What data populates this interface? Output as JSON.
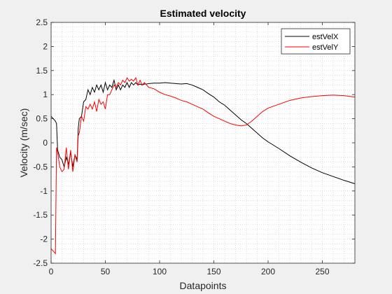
{
  "chart_data": {
    "type": "line",
    "title": "Estimated velocity",
    "xlabel": "Datapoints",
    "ylabel": "Velocity (m/sec)",
    "xlim": [
      0,
      280
    ],
    "ylim": [
      -2.5,
      2.5
    ],
    "xticks": [
      0,
      50,
      100,
      150,
      200,
      250
    ],
    "yticks": [
      -2.5,
      -2,
      -1.5,
      -1,
      -0.5,
      0,
      0.5,
      1,
      1.5,
      2,
      2.5
    ],
    "xtick_labels": [
      "0",
      "50",
      "100",
      "150",
      "200",
      "250"
    ],
    "ytick_labels": [
      "-2.5",
      "-2",
      "-1.5",
      "-1",
      "-0.5",
      "0",
      "0.5",
      "1",
      "1.5",
      "2",
      "2.5"
    ],
    "grid": "minor-dotted",
    "legend_position": "top-right",
    "series": [
      {
        "name": "estVelX",
        "color": "#000000",
        "x": [
          0,
          2,
          4,
          5,
          6,
          8,
          10,
          12,
          14,
          16,
          18,
          20,
          22,
          24,
          25,
          26,
          28,
          30,
          32,
          34,
          36,
          38,
          40,
          42,
          44,
          46,
          48,
          50,
          52,
          54,
          56,
          58,
          60,
          62,
          64,
          66,
          68,
          70,
          72,
          74,
          76,
          78,
          80,
          82,
          84,
          86,
          88,
          90,
          95,
          100,
          105,
          110,
          115,
          120,
          125,
          130,
          135,
          140,
          145,
          150,
          155,
          160,
          165,
          170,
          175,
          180,
          185,
          190,
          195,
          200,
          210,
          220,
          230,
          240,
          250,
          260,
          270,
          280
        ],
        "y": [
          0.55,
          0.5,
          0.45,
          0.4,
          -0.15,
          -0.3,
          -0.35,
          -0.5,
          -0.3,
          -0.45,
          -0.2,
          -0.5,
          -0.25,
          -0.35,
          0.3,
          0.5,
          0.55,
          0.85,
          0.9,
          1.1,
          1.0,
          1.15,
          1.05,
          1.2,
          1.1,
          1.2,
          1.05,
          1.25,
          1.1,
          1.2,
          1.15,
          1.3,
          1.1,
          1.2,
          1.1,
          1.2,
          1.15,
          1.25,
          1.15,
          1.25,
          1.2,
          1.25,
          1.2,
          1.22,
          1.2,
          1.22,
          1.22,
          1.23,
          1.24,
          1.24,
          1.25,
          1.24,
          1.23,
          1.22,
          1.23,
          1.2,
          1.15,
          1.1,
          1.02,
          0.95,
          0.85,
          0.78,
          0.68,
          0.58,
          0.48,
          0.4,
          0.3,
          0.2,
          0.1,
          0.02,
          -0.12,
          -0.27,
          -0.4,
          -0.52,
          -0.62,
          -0.7,
          -0.78,
          -0.85
        ]
      },
      {
        "name": "estVelY",
        "color": "#ff0000",
        "x": [
          0,
          2,
          4,
          5,
          6,
          8,
          10,
          12,
          14,
          16,
          18,
          20,
          22,
          24,
          25,
          26,
          28,
          30,
          32,
          34,
          36,
          38,
          40,
          42,
          44,
          46,
          48,
          50,
          52,
          54,
          56,
          58,
          60,
          62,
          64,
          66,
          68,
          70,
          72,
          74,
          76,
          78,
          80,
          82,
          84,
          86,
          88,
          90,
          95,
          100,
          105,
          110,
          115,
          120,
          125,
          130,
          135,
          140,
          145,
          150,
          155,
          160,
          165,
          170,
          175,
          180,
          185,
          190,
          195,
          200,
          210,
          220,
          230,
          240,
          250,
          260,
          270,
          280
        ],
        "y": [
          -2.2,
          -2.25,
          -2.3,
          -0.1,
          -0.2,
          -0.5,
          -0.6,
          -0.55,
          -0.1,
          -0.55,
          -0.15,
          -0.6,
          -0.25,
          -0.4,
          0.15,
          0.2,
          0.55,
          0.45,
          0.75,
          0.7,
          0.8,
          0.7,
          0.85,
          0.65,
          0.9,
          0.8,
          0.85,
          0.7,
          1.0,
          1.0,
          1.1,
          1.2,
          1.15,
          1.25,
          1.2,
          1.3,
          1.25,
          1.35,
          1.28,
          1.32,
          1.28,
          1.35,
          1.2,
          1.3,
          1.2,
          1.25,
          1.2,
          1.15,
          1.12,
          1.05,
          1.0,
          0.97,
          0.93,
          0.88,
          0.85,
          0.8,
          0.75,
          0.7,
          0.62,
          0.55,
          0.5,
          0.45,
          0.4,
          0.37,
          0.35,
          0.37,
          0.45,
          0.55,
          0.65,
          0.72,
          0.8,
          0.88,
          0.93,
          0.96,
          0.98,
          0.99,
          0.98,
          0.95
        ]
      }
    ]
  }
}
